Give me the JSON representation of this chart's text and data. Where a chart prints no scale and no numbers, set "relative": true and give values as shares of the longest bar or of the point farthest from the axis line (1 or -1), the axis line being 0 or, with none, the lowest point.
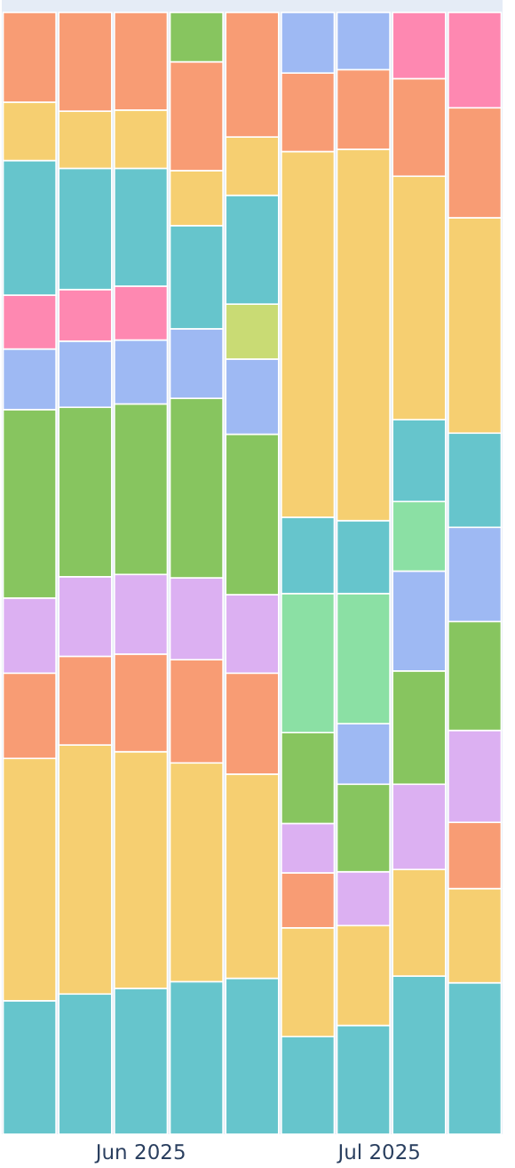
{
  "chart_data": {
    "type": "bar",
    "stacked": true,
    "relative": true,
    "x": [
      "2025-05-18",
      "2025-05-25",
      "2025-06-01",
      "2025-06-08",
      "2025-06-15",
      "2025-06-22",
      "2025-06-29",
      "2025-07-06",
      "2025-07-13"
    ],
    "xlim": [
      "2025-05-14T12:00",
      "2025-07-16T12:00"
    ],
    "xticks": [
      {
        "value": "2025-06-01",
        "label": "Jun 2025"
      },
      {
        "value": "2025-07-01",
        "label": "Jul 2025"
      }
    ],
    "series": [
      {
        "values": [
          0.119,
          0.125,
          0.13,
          0.136,
          0.139,
          0.087,
          0.097,
          0.141,
          0.135
        ],
        "colors": [
          "#66c5cc",
          "#66c5cc",
          "#66c5cc",
          "#66c5cc",
          "#66c5cc",
          "#66c5cc",
          "#66c5cc",
          "#66c5cc",
          "#66c5cc"
        ]
      },
      {
        "values": [
          0.216,
          0.222,
          0.211,
          0.195,
          0.182,
          0.097,
          0.089,
          0.095,
          0.084
        ],
        "colors": [
          "#f6cf71",
          "#f6cf71",
          "#f6cf71",
          "#f6cf71",
          "#f6cf71",
          "#f6cf71",
          "#f6cf71",
          "#f6cf71",
          "#f6cf71"
        ]
      },
      {
        "values": [
          0.076,
          0.079,
          0.087,
          0.092,
          0.09,
          0.049,
          0.048,
          0.076,
          0.059
        ],
        "colors": [
          "#f89c74",
          "#f89c74",
          "#f89c74",
          "#f89c74",
          "#f89c74",
          "#f89c74",
          "#dcb0f2",
          "#dcb0f2",
          "#f89c74"
        ]
      },
      {
        "values": [
          0.067,
          0.071,
          0.071,
          0.073,
          0.07,
          0.044,
          0.078,
          0.101,
          0.082
        ],
        "colors": [
          "#dcb0f2",
          "#dcb0f2",
          "#dcb0f2",
          "#dcb0f2",
          "#dcb0f2",
          "#dcb0f2",
          "#87c55f",
          "#87c55f",
          "#dcb0f2"
        ]
      },
      {
        "values": [
          0.168,
          0.151,
          0.152,
          0.16,
          0.143,
          0.081,
          0.054,
          0.089,
          0.097
        ],
        "colors": [
          "#87c55f",
          "#87c55f",
          "#87c55f",
          "#87c55f",
          "#87c55f",
          "#87c55f",
          "#9eb9f3",
          "#9eb9f3",
          "#87c55f"
        ]
      },
      {
        "values": [
          0.054,
          0.059,
          0.057,
          0.062,
          0.067,
          0.124,
          0.116,
          0.062,
          0.084
        ],
        "colors": [
          "#9eb9f3",
          "#9eb9f3",
          "#9eb9f3",
          "#9eb9f3",
          "#9eb9f3",
          "#8be0a4",
          "#8be0a4",
          "#8be0a4",
          "#9eb9f3"
        ]
      },
      {
        "values": [
          0.048,
          0.046,
          0.048,
          0.092,
          0.049,
          0.068,
          0.065,
          0.073,
          0.084
        ],
        "colors": [
          "#fe88b1",
          "#fe88b1",
          "#fe88b1",
          "#66c5cc",
          "#c9db74",
          "#66c5cc",
          "#66c5cc",
          "#66c5cc",
          "#66c5cc"
        ]
      },
      {
        "values": [
          0.12,
          0.108,
          0.105,
          0.049,
          0.097,
          0.326,
          0.331,
          0.217,
          0.192
        ],
        "colors": [
          "#66c5cc",
          "#66c5cc",
          "#66c5cc",
          "#f6cf71",
          "#66c5cc",
          "#f6cf71",
          "#f6cf71",
          "#f6cf71",
          "#f6cf71"
        ]
      },
      {
        "values": [
          0.052,
          0.051,
          0.052,
          0.097,
          0.052,
          0.07,
          0.071,
          0.087,
          0.098
        ],
        "colors": [
          "#f6cf71",
          "#f6cf71",
          "#f6cf71",
          "#f89c74",
          "#f6cf71",
          "#f89c74",
          "#f89c74",
          "#f89c74",
          "#f89c74"
        ]
      },
      {
        "values": [
          0.08,
          0.088,
          0.087,
          0.044,
          0.111,
          0.054,
          0.051,
          0.059,
          0.085
        ],
        "colors": [
          "#f89c74",
          "#f89c74",
          "#f89c74",
          "#87c55f",
          "#f89c74",
          "#9eb9f3",
          "#9eb9f3",
          "#fe88b1",
          "#fe88b1"
        ]
      }
    ]
  }
}
